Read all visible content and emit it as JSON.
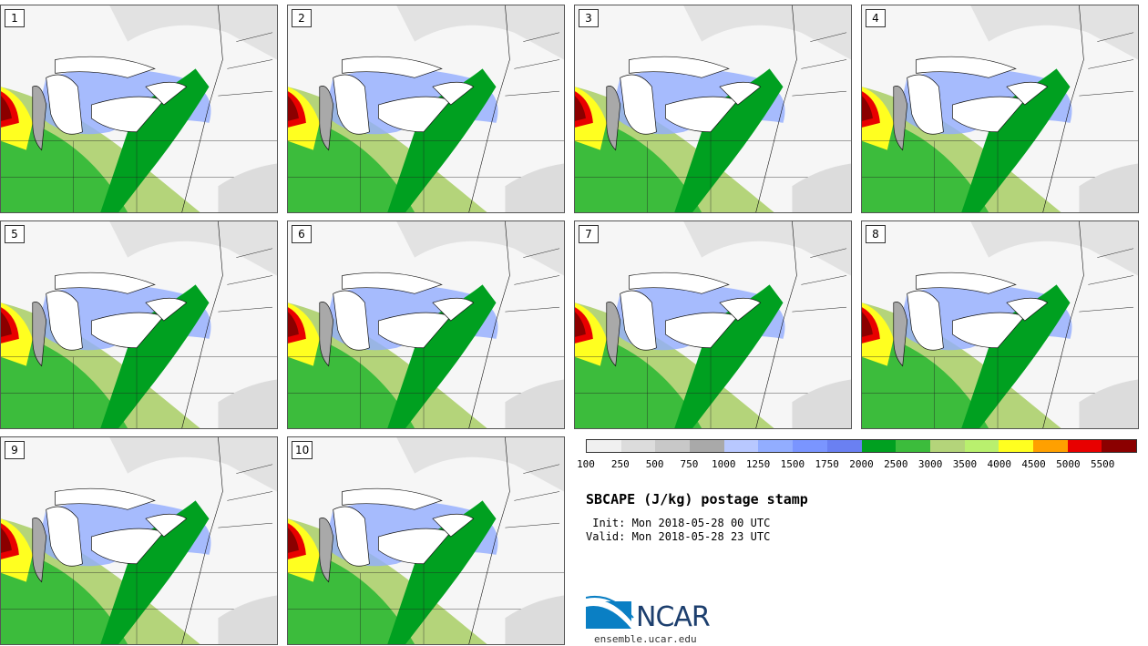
{
  "panels": [
    {
      "label": "1"
    },
    {
      "label": "2"
    },
    {
      "label": "3"
    },
    {
      "label": "4"
    },
    {
      "label": "5"
    },
    {
      "label": "6"
    },
    {
      "label": "7"
    },
    {
      "label": "8"
    },
    {
      "label": "9"
    },
    {
      "label": "10"
    }
  ],
  "colorbar": {
    "colors": [
      "#f0f0f0",
      "#dcdcdc",
      "#c8c8c8",
      "#a9a9a9",
      "#b8c8ff",
      "#92adff",
      "#7a95ff",
      "#6a80f2",
      "#00a020",
      "#3cbc3c",
      "#b4d47a",
      "#b9f06e",
      "#ffff20",
      "#ffa000",
      "#e80000",
      "#8b0000"
    ],
    "ticks": [
      "100",
      "250",
      "500",
      "750",
      "1000",
      "1250",
      "1500",
      "1750",
      "2000",
      "2500",
      "3000",
      "3500",
      "4000",
      "4500",
      "5000",
      "5500"
    ]
  },
  "title": "SBCAPE (J/kg) postage stamp",
  "init_text": " Init: Mon 2018-05-28 00 UTC",
  "valid_text": "Valid: Mon 2018-05-28 23 UTC",
  "logo": {
    "text": "NCAR",
    "site": "ensemble.ucar.edu"
  }
}
